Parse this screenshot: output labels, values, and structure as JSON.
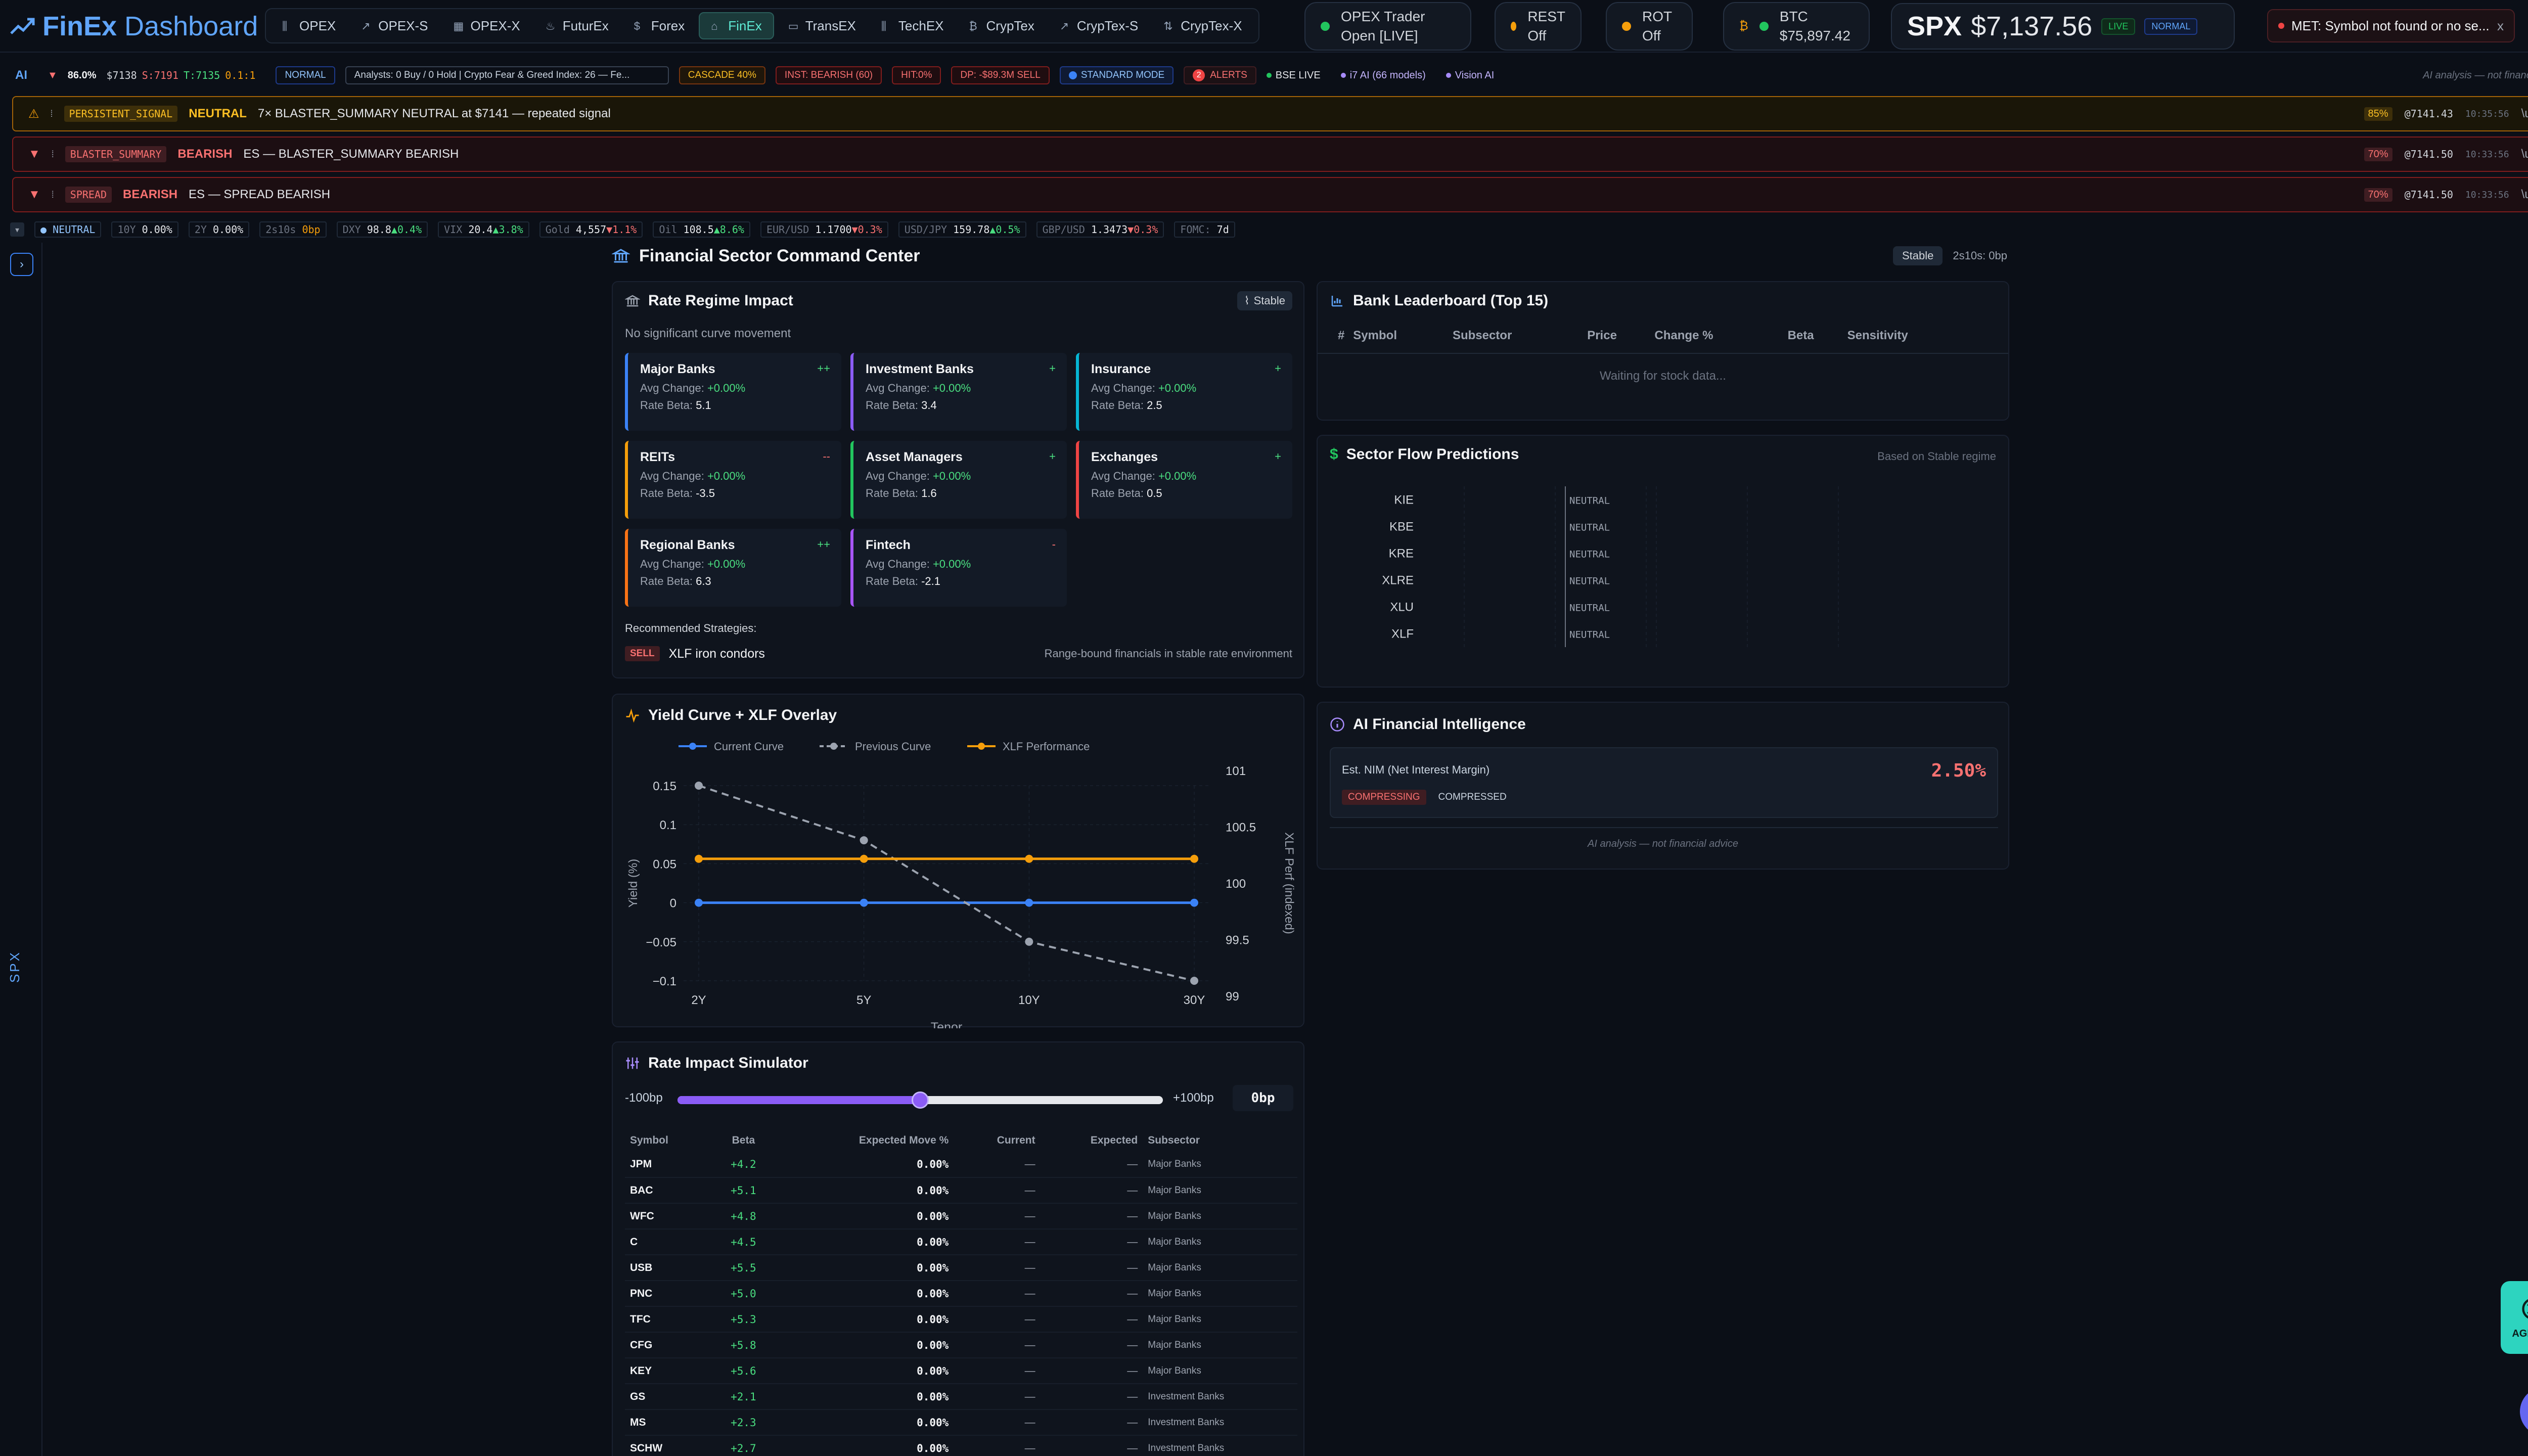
{
  "app": {
    "brand_a": "FinEx",
    "brand_b": "Dashboard"
  },
  "nav": {
    "tabs": [
      {
        "label": "OPEX",
        "icon": "bar-chart-icon"
      },
      {
        "label": "OPEX-S",
        "icon": "trend-line-icon"
      },
      {
        "label": "OPEX-X",
        "icon": "calendar-icon"
      },
      {
        "label": "FuturEx",
        "icon": "flame-icon"
      },
      {
        "label": "Forex",
        "icon": "dollar-icon"
      },
      {
        "label": "FinEx",
        "icon": "bank-icon"
      },
      {
        "label": "TransEX",
        "icon": "truck-icon"
      },
      {
        "label": "TechEX",
        "icon": "bar-chart-icon"
      },
      {
        "label": "CrypTex",
        "icon": "bitcoin-icon"
      },
      {
        "label": "CrypTex-S",
        "icon": "trend-line-icon"
      },
      {
        "label": "CrypTex-X",
        "icon": "arrows-icon"
      }
    ],
    "active_tab": "FinEx"
  },
  "status": {
    "opex": {
      "line1": "OPEX Trader",
      "line2": "Open [LIVE]",
      "color": "#22c55e"
    },
    "rest": {
      "line1": "REST",
      "line2": "Off",
      "color": "#f59e0b"
    },
    "rot": {
      "line1": "ROT",
      "line2": "Off",
      "color": "#f59e0b"
    },
    "btc": {
      "symbol": "₿",
      "line1": "BTC",
      "line2": "$75,897.42"
    }
  },
  "spx": {
    "symbol": "SPX",
    "price": "$7,137.56",
    "live": "LIVE",
    "mode": "NORMAL"
  },
  "met_alert": {
    "text": "MET: Symbol not found or no se...",
    "close": "x"
  },
  "ai_row": {
    "label": "AI",
    "confidence": "86.0%",
    "price": "$7138",
    "s_level": "S:7191",
    "t_level": "T:7135",
    "ratio": "0.1:1",
    "mode_chip": "NORMAL",
    "analysts_chip": "Analysts: 0 Buy / 0 Hold | Crypto Fear & Greed Index: 26 — Fe...",
    "cascade_chip": "CASCADE 40%",
    "inst_chip": "INST: BEARISH (60)",
    "hit_chip": "HIT:0%",
    "dp_chip": "DP: -$89.3M SELL",
    "standard_mode": "STANDARD MODE",
    "alerts_count": "2",
    "alerts_label": "ALERTS",
    "bse_live": "BSE LIVE",
    "ai_models": "i7 AI (66 models)",
    "vision_ai": "Vision AI",
    "disclaimer": "AI analysis — not financial advice"
  },
  "banners": [
    {
      "tag": "PERSISTENT_SIGNAL",
      "signal": "NEUTRAL",
      "message": "7× BLASTER_SUMMARY NEUTRAL at $7141 — repeated signal",
      "pct": "85%",
      "at": "@7141.43",
      "time": "10:35:56",
      "close": "\\u00D7",
      "kind": "warn"
    },
    {
      "tag": "BLASTER_SUMMARY",
      "signal": "BEARISH",
      "message": "ES — BLASTER_SUMMARY BEARISH",
      "pct": "70%",
      "at": "@7141.50",
      "time": "10:33:56",
      "close": "\\u00D7",
      "kind": "bear"
    },
    {
      "tag": "SPREAD",
      "signal": "BEARISH",
      "message": "ES — SPREAD BEARISH",
      "pct": "70%",
      "at": "@7141.50",
      "time": "10:33:56",
      "close": "\\u00D7",
      "kind": "bear"
    }
  ],
  "ticker": {
    "neutral": "NEUTRAL",
    "items": [
      {
        "label": "10Y",
        "value": "0.00%",
        "chg": ""
      },
      {
        "label": "2Y",
        "value": "0.00%",
        "chg": ""
      },
      {
        "label": "2s10s",
        "value": "0bp",
        "chg": "",
        "color": "#f59e0b"
      },
      {
        "label": "DXY",
        "value": "98.8",
        "chg": "▲0.4%",
        "dir": "up"
      },
      {
        "label": "VIX",
        "value": "20.4",
        "chg": "▲3.8%",
        "dir": "up"
      },
      {
        "label": "Gold",
        "value": "4,557",
        "chg": "▼1.1%",
        "dir": "down"
      },
      {
        "label": "Oil",
        "value": "108.5",
        "chg": "▲8.6%",
        "dir": "up"
      },
      {
        "label": "EUR/USD",
        "value": "1.1700",
        "chg": "▼0.3%",
        "dir": "down"
      },
      {
        "label": "USD/JPY",
        "value": "159.78",
        "chg": "▲0.5%",
        "dir": "up"
      },
      {
        "label": "GBP/USD",
        "value": "1.3473",
        "chg": "▼0.3%",
        "dir": "down"
      },
      {
        "label": "FOMC:",
        "value": "7d",
        "chg": ""
      }
    ]
  },
  "rail": {
    "toggle": "›",
    "vertical": "SPX"
  },
  "main": {
    "title": "Financial Sector Command Center",
    "regime": "Stable",
    "spread": "2s10s: 0bp"
  },
  "rate_regime": {
    "title": "Rate Regime Impact",
    "badge": "Stable",
    "subtitle": "No significant curve movement",
    "sectors": [
      {
        "name": "Major Banks",
        "avg_label": "Avg Change:",
        "avg": "+0.00%",
        "beta_label": "Rate Beta:",
        "beta": "5.1",
        "sig": "++",
        "color": "#3b82f6"
      },
      {
        "name": "Investment Banks",
        "avg_label": "Avg Change:",
        "avg": "+0.00%",
        "beta_label": "Rate Beta:",
        "beta": "3.4",
        "sig": "+",
        "color": "#8b5cf6"
      },
      {
        "name": "Insurance",
        "avg_label": "Avg Change:",
        "avg": "+0.00%",
        "beta_label": "Rate Beta:",
        "beta": "2.5",
        "sig": "+",
        "color": "#06b6d4"
      },
      {
        "name": "REITs",
        "avg_label": "Avg Change:",
        "avg": "+0.00%",
        "beta_label": "Rate Beta:",
        "beta": "-3.5",
        "sig": "--",
        "color": "#f59e0b"
      },
      {
        "name": "Asset Managers",
        "avg_label": "Avg Change:",
        "avg": "+0.00%",
        "beta_label": "Rate Beta:",
        "beta": "1.6",
        "sig": "+",
        "color": "#22c55e"
      },
      {
        "name": "Exchanges",
        "avg_label": "Avg Change:",
        "avg": "+0.00%",
        "beta_label": "Rate Beta:",
        "beta": "0.5",
        "sig": "+",
        "color": "#ef4444"
      },
      {
        "name": "Regional Banks",
        "avg_label": "Avg Change:",
        "avg": "+0.00%",
        "beta_label": "Rate Beta:",
        "beta": "6.3",
        "sig": "++",
        "color": "#f97316"
      },
      {
        "name": "Fintech",
        "avg_label": "Avg Change:",
        "avg": "+0.00%",
        "beta_label": "Rate Beta:",
        "beta": "-2.1",
        "sig": "-",
        "color": "#a855f7"
      }
    ],
    "strategies_label": "Recommended Strategies:",
    "strategy": {
      "action": "SELL",
      "name": "XLF iron condors",
      "note": "Range-bound financials in stable rate environment"
    }
  },
  "leaderboard": {
    "title": "Bank Leaderboard (Top 15)",
    "columns": [
      "#",
      "Symbol",
      "Subsector",
      "Price",
      "Change %",
      "Beta",
      "Sensitivity"
    ],
    "empty": "Waiting for stock data..."
  },
  "flow": {
    "title": "Sector Flow Predictions",
    "note": "Based on Stable regime",
    "rows": [
      {
        "sym": "KIE",
        "value": 0,
        "label": "NEUTRAL"
      },
      {
        "sym": "KBE",
        "value": 0,
        "label": "NEUTRAL"
      },
      {
        "sym": "KRE",
        "value": 0,
        "label": "NEUTRAL"
      },
      {
        "sym": "XLRE",
        "value": 0,
        "label": "NEUTRAL"
      },
      {
        "sym": "XLU",
        "value": 0,
        "label": "NEUTRAL"
      },
      {
        "sym": "XLF",
        "value": 0,
        "label": "NEUTRAL"
      }
    ]
  },
  "ai_intel": {
    "title": "AI Financial Intelligence",
    "nim_label": "Est. NIM (Net Interest Margin)",
    "nim_value": "2.50%",
    "tag1": "COMPRESSING",
    "tag2": "COMPRESSED",
    "disclaimer": "AI analysis — not financial advice"
  },
  "chart_data": {
    "type": "line",
    "title": "Yield Curve + XLF Overlay",
    "categories": [
      "2Y",
      "5Y",
      "10Y",
      "30Y"
    ],
    "xlabel": "Tenor",
    "ylabel": "Yield (%)",
    "y2label": "XLF Perf (indexed)",
    "ylim": [
      -0.1,
      0.15
    ],
    "y_ticks": [
      "0.15",
      "0.1",
      "0.05",
      "0",
      "−0.05",
      "−0.1"
    ],
    "y2lim": [
      99,
      101
    ],
    "y2_ticks": [
      "101",
      "100.5",
      "100",
      "99.5",
      "99"
    ],
    "grid": true,
    "legend": "top",
    "series": [
      {
        "name": "Current Curve",
        "values": [
          0,
          0,
          0,
          0
        ],
        "axis": "left",
        "color": "#3b82f6"
      },
      {
        "name": "Previous Curve",
        "values": [
          0.15,
          0.08,
          -0.05,
          -0.1
        ],
        "axis": "left",
        "color": "#9ca3af",
        "dashed": true
      },
      {
        "name": "XLF Performance",
        "values": [
          100.25,
          100.25,
          100.25,
          100.25
        ],
        "axis": "right",
        "color": "#f59e0b"
      }
    ]
  },
  "simulator": {
    "title": "Rate Impact Simulator",
    "min_label": "-100bp",
    "max_label": "+100bp",
    "value_label": "0bp",
    "value_fraction": 0.5,
    "columns": [
      "Symbol",
      "Beta",
      "Expected Move %",
      "Current",
      "Expected",
      "Subsector"
    ],
    "rows": [
      {
        "sym": "JPM",
        "beta": "+4.2",
        "move": "0.00%",
        "cur": "—",
        "exp": "—",
        "sub": "Major Banks"
      },
      {
        "sym": "BAC",
        "beta": "+5.1",
        "move": "0.00%",
        "cur": "—",
        "exp": "—",
        "sub": "Major Banks"
      },
      {
        "sym": "WFC",
        "beta": "+4.8",
        "move": "0.00%",
        "cur": "—",
        "exp": "—",
        "sub": "Major Banks"
      },
      {
        "sym": "C",
        "beta": "+4.5",
        "move": "0.00%",
        "cur": "—",
        "exp": "—",
        "sub": "Major Banks"
      },
      {
        "sym": "USB",
        "beta": "+5.5",
        "move": "0.00%",
        "cur": "—",
        "exp": "—",
        "sub": "Major Banks"
      },
      {
        "sym": "PNC",
        "beta": "+5.0",
        "move": "0.00%",
        "cur": "—",
        "exp": "—",
        "sub": "Major Banks"
      },
      {
        "sym": "TFC",
        "beta": "+5.3",
        "move": "0.00%",
        "cur": "—",
        "exp": "—",
        "sub": "Major Banks"
      },
      {
        "sym": "CFG",
        "beta": "+5.8",
        "move": "0.00%",
        "cur": "—",
        "exp": "—",
        "sub": "Major Banks"
      },
      {
        "sym": "KEY",
        "beta": "+5.6",
        "move": "0.00%",
        "cur": "—",
        "exp": "—",
        "sub": "Major Banks"
      },
      {
        "sym": "GS",
        "beta": "+2.1",
        "move": "0.00%",
        "cur": "—",
        "exp": "—",
        "sub": "Investment Banks"
      },
      {
        "sym": "MS",
        "beta": "+2.3",
        "move": "0.00%",
        "cur": "—",
        "exp": "—",
        "sub": "Investment Banks"
      },
      {
        "sym": "SCHW",
        "beta": "+2.7",
        "move": "0.00%",
        "cur": "—",
        "exp": "—",
        "sub": "Investment Banks"
      }
    ]
  },
  "float": {
    "agents_label": "AGENTS"
  }
}
